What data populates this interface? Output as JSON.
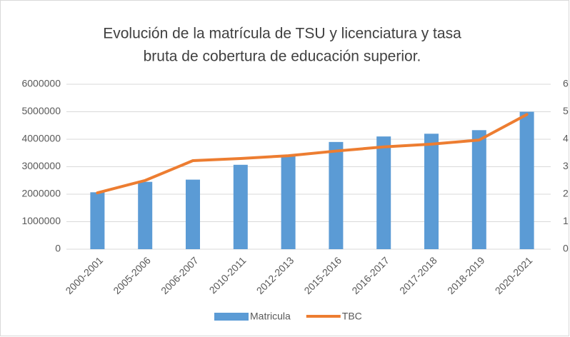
{
  "chart_data": {
    "type": "bar+line",
    "title": [
      "Evolución de la matrícula de TSU y licenciatura y tasa",
      "bruta de cobertura de educación superior."
    ],
    "categories": [
      "2000-2001",
      "2005-2006",
      "2006-2007",
      "2010-2011",
      "2012-2013",
      "2015-2016",
      "2016-2017",
      "2017-2018",
      "2018-2019",
      "2020-2021"
    ],
    "series": [
      {
        "name": "Matricula",
        "type": "bar",
        "color": "#5b9bd5",
        "axis": "y",
        "values": [
          2070000,
          2450000,
          2530000,
          3070000,
          3400000,
          3900000,
          4100000,
          4200000,
          4330000,
          5000000
        ]
      },
      {
        "name": "TBC",
        "type": "line",
        "color": "#ed7d31",
        "axis": "y2",
        "values": [
          2.05,
          2.5,
          3.22,
          3.3,
          3.4,
          3.57,
          3.72,
          3.82,
          3.97,
          4.9
        ]
      }
    ],
    "ylim": [
      0,
      6000000
    ],
    "yticks": [
      0,
      1000000,
      2000000,
      3000000,
      4000000,
      5000000,
      6000000
    ],
    "y2lim": [
      0,
      6
    ],
    "y2ticks": [
      0,
      1,
      2,
      3,
      4,
      5,
      6
    ],
    "grid": true,
    "legend": "bottom"
  }
}
